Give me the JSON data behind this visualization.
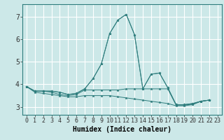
{
  "title": "",
  "xlabel": "Humidex (Indice chaleur)",
  "bg_color": "#cce8e8",
  "grid_color": "#ffffff",
  "line_color": "#2e7d7d",
  "xlim": [
    -0.5,
    23.5
  ],
  "ylim": [
    2.65,
    7.55
  ],
  "yticks": [
    3,
    4,
    5,
    6,
    7
  ],
  "xticks": [
    0,
    1,
    2,
    3,
    4,
    5,
    6,
    7,
    8,
    9,
    10,
    11,
    12,
    13,
    14,
    15,
    16,
    17,
    18,
    19,
    20,
    21,
    22,
    23
  ],
  "series": [
    {
      "x": [
        0,
        1,
        2,
        3,
        4,
        5,
        6,
        7,
        8,
        9,
        10,
        11,
        12,
        13,
        14,
        15,
        16,
        17,
        18,
        19,
        20,
        21,
        22
      ],
      "y": [
        3.9,
        3.7,
        3.7,
        3.7,
        3.65,
        3.55,
        3.6,
        3.8,
        4.25,
        4.9,
        6.25,
        6.85,
        7.1,
        6.2,
        3.8,
        4.45,
        4.5,
        3.85,
        3.1,
        3.1,
        3.15,
        3.25,
        3.3
      ]
    },
    {
      "x": [
        0,
        1,
        2,
        3,
        4,
        5,
        6,
        7,
        8,
        9,
        10,
        11,
        12,
        13,
        14,
        15,
        16,
        17,
        18,
        19,
        20,
        21,
        22
      ],
      "y": [
        3.9,
        3.7,
        3.7,
        3.7,
        3.65,
        3.55,
        3.6,
        3.8,
        4.25,
        4.9,
        6.25,
        6.85,
        7.1,
        6.2,
        3.8,
        4.45,
        4.5,
        3.85,
        3.1,
        3.1,
        3.15,
        3.25,
        3.3
      ]
    },
    {
      "x": [
        0,
        1,
        2,
        3,
        4,
        5,
        6,
        7,
        8,
        9,
        10,
        11,
        12,
        13,
        14,
        15,
        16,
        17,
        18,
        19,
        20,
        21,
        22
      ],
      "y": [
        3.9,
        3.7,
        3.7,
        3.65,
        3.55,
        3.5,
        3.55,
        3.75,
        3.75,
        3.75,
        3.75,
        3.75,
        3.8,
        3.8,
        3.8,
        3.8,
        3.8,
        3.8,
        3.08,
        3.08,
        3.12,
        3.25,
        3.3
      ]
    },
    {
      "x": [
        0,
        1,
        2,
        3,
        4,
        5,
        6,
        7,
        8,
        9,
        10,
        11,
        12,
        13,
        14,
        15,
        16,
        17,
        18,
        19,
        20,
        21,
        22
      ],
      "y": [
        3.9,
        3.65,
        3.6,
        3.55,
        3.5,
        3.45,
        3.45,
        3.5,
        3.5,
        3.5,
        3.5,
        3.45,
        3.4,
        3.35,
        3.3,
        3.25,
        3.2,
        3.15,
        3.05,
        3.05,
        3.1,
        3.25,
        3.3
      ]
    }
  ],
  "xlabel_fontsize": 7,
  "tick_fontsize": 6,
  "ytick_fontsize": 7
}
